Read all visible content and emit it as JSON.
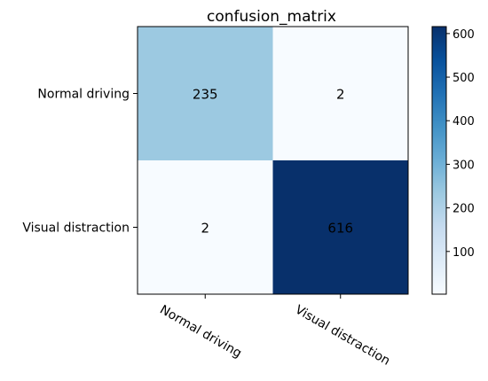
{
  "chart_data": {
    "type": "heatmap",
    "title": "confusion_matrix",
    "xlabel": "",
    "ylabel": "",
    "x_categories": [
      "Normal driving",
      "Visual distraction"
    ],
    "y_categories": [
      "Normal driving",
      "Visual distraction"
    ],
    "values": [
      [
        235,
        2
      ],
      [
        2,
        616
      ]
    ],
    "colormap": "Blues",
    "colormap_stops": [
      "#f7fbff",
      "#deebf7",
      "#c6dbef",
      "#9ecae1",
      "#6baed6",
      "#4292c6",
      "#2171b5",
      "#08519c",
      "#08306b"
    ],
    "colorbar": {
      "range": [
        2,
        616
      ],
      "ticks": [
        "100",
        "200",
        "300",
        "400",
        "500",
        "600"
      ]
    },
    "grid": false,
    "x_tick_rotation": "rotated"
  }
}
